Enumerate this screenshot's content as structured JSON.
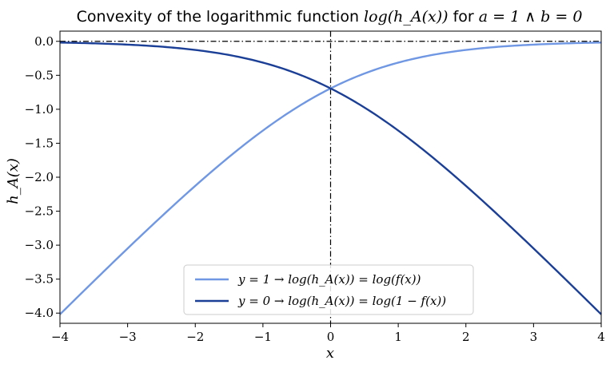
{
  "chart_data": {
    "type": "line",
    "title": {
      "prefix": "Convexity of the logarithmic function ",
      "math_function": "log(h_A(x))",
      "mid": " for ",
      "math_condition": "a = 1 ∧ b = 0"
    },
    "xlabel": "x",
    "ylabel": "h_A(x)",
    "xlim": [
      -4,
      4
    ],
    "ylim": [
      -4.15,
      0.15
    ],
    "xticks": [
      -4,
      -3,
      -2,
      -1,
      0,
      1,
      2,
      3,
      4
    ],
    "yticks": [
      0.0,
      -0.5,
      -1.0,
      -1.5,
      -2.0,
      -2.5,
      -3.0,
      -3.5,
      -4.0
    ],
    "xtick_labels": [
      "−4",
      "−3",
      "−2",
      "−1",
      "0",
      "1",
      "2",
      "3",
      "4"
    ],
    "ytick_labels": [
      "0.0",
      "−0.5",
      "−1.0",
      "−1.5",
      "−2.0",
      "−2.5",
      "−3.0",
      "−3.5",
      "−4.0"
    ],
    "grid": false,
    "legend_position": "bottom-center",
    "reference_lines": [
      {
        "orientation": "horizontal",
        "value": 0.0,
        "style": "dash-dot",
        "color": "#000000"
      },
      {
        "orientation": "vertical",
        "value": 0.0,
        "style": "dash-dot",
        "color": "#000000"
      }
    ],
    "x": [
      -4.0,
      -3.5,
      -3.0,
      -2.5,
      -2.0,
      -1.5,
      -1.0,
      -0.5,
      0.0,
      0.5,
      1.0,
      1.5,
      2.0,
      2.5,
      3.0,
      3.5,
      4.0
    ],
    "series": [
      {
        "name": "y = 1 → log(h_A(x)) = log(f(x))",
        "color": "#6f97e3",
        "values": [
          -4.018,
          -3.53,
          -3.049,
          -2.579,
          -2.127,
          -1.701,
          -1.313,
          -0.974,
          -0.693,
          -0.474,
          -0.313,
          -0.201,
          -0.127,
          -0.079,
          -0.049,
          -0.03,
          -0.018
        ]
      },
      {
        "name": "y = 0 → log(h_A(x)) = log(1 − f(x))",
        "color": "#1b3f96",
        "values": [
          -0.018,
          -0.03,
          -0.049,
          -0.079,
          -0.127,
          -0.201,
          -0.313,
          -0.474,
          -0.693,
          -0.974,
          -1.313,
          -1.701,
          -2.127,
          -2.579,
          -3.049,
          -3.53,
          -4.018
        ]
      }
    ]
  }
}
